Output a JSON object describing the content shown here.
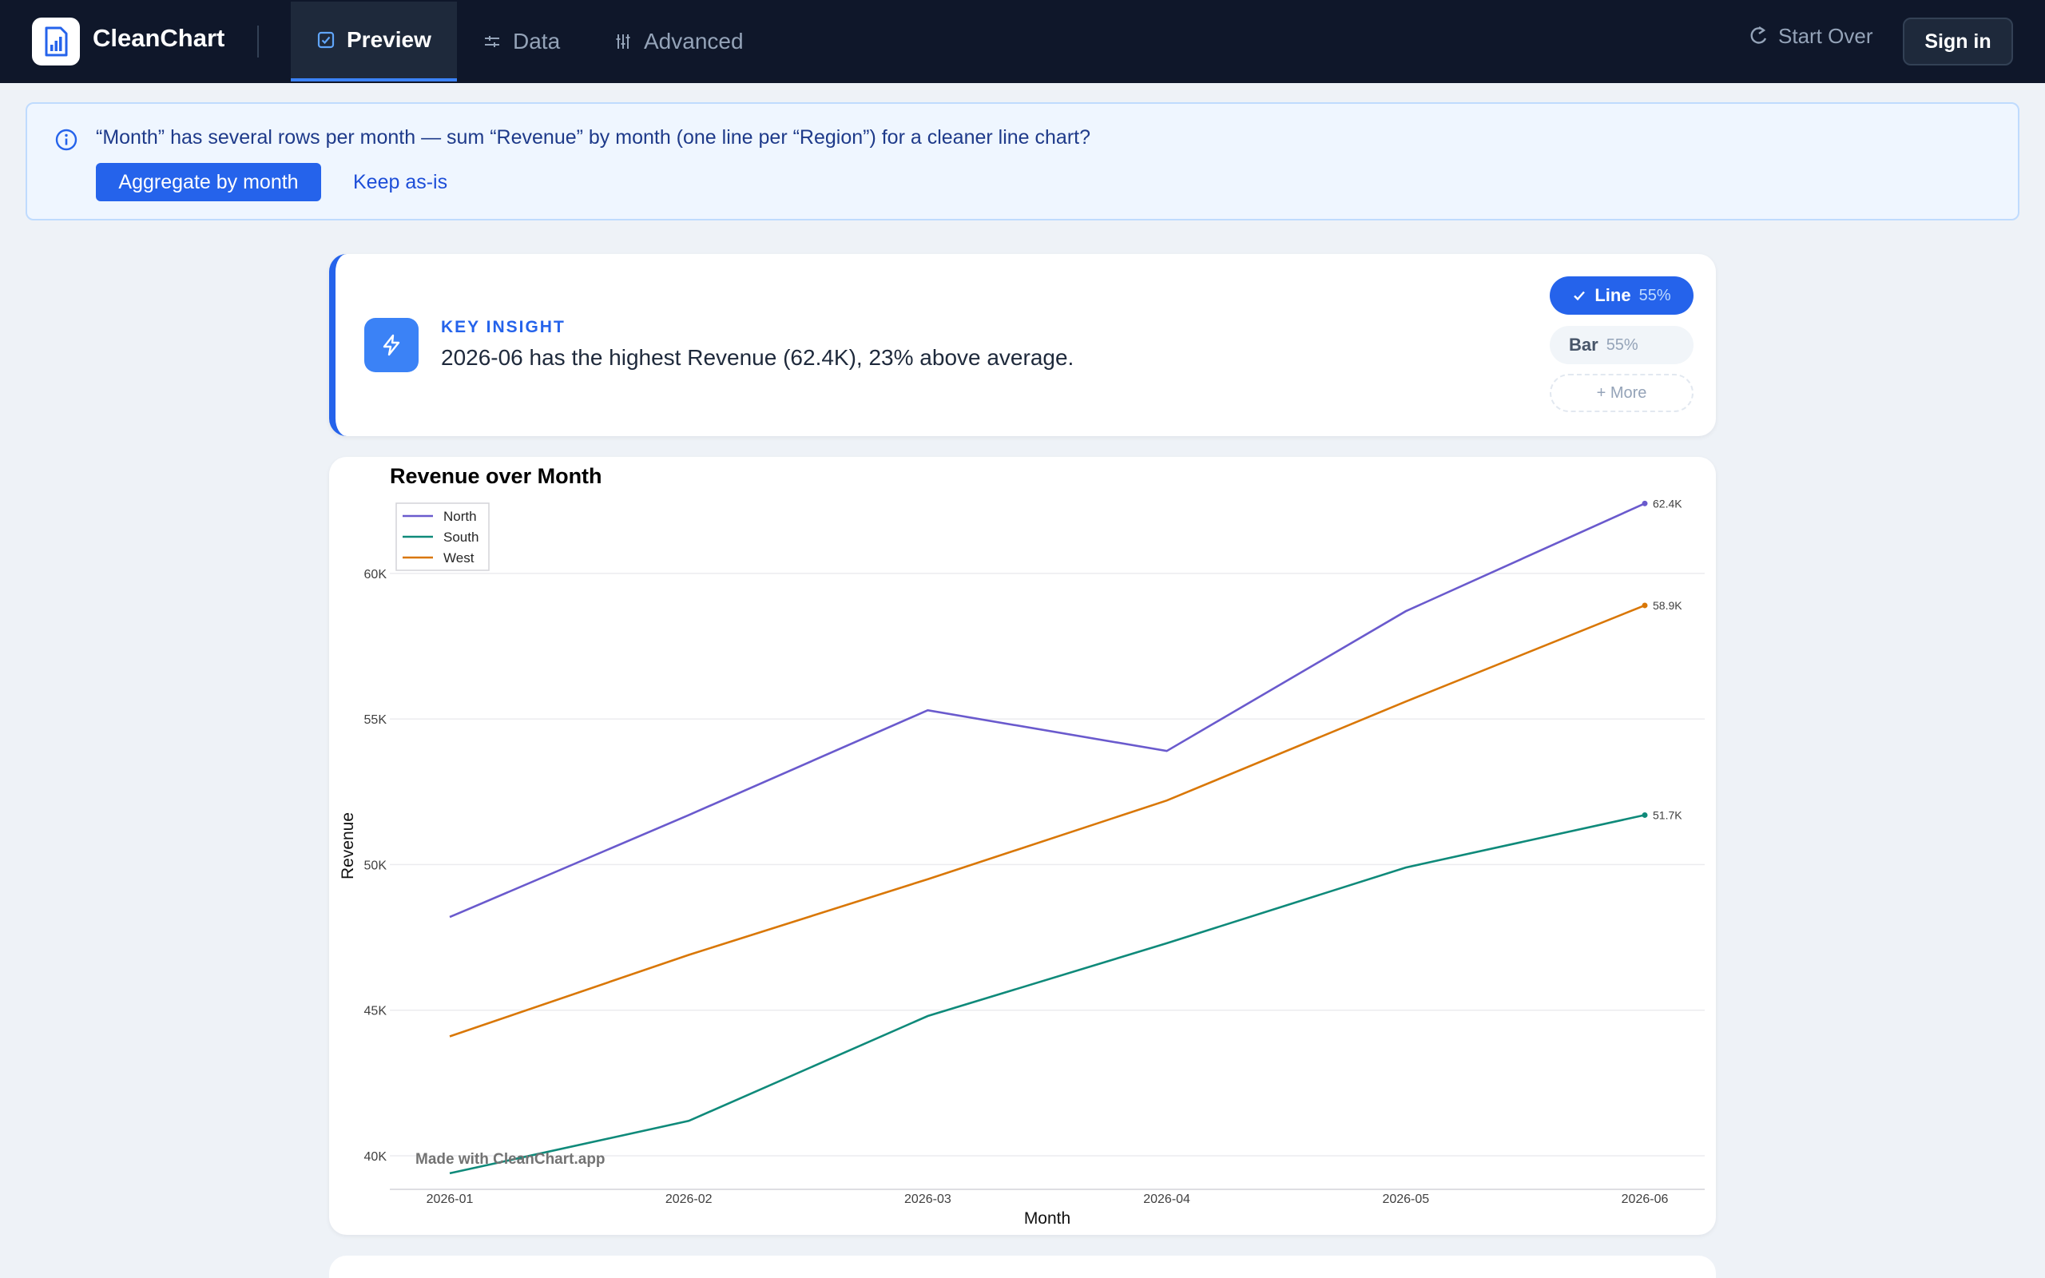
{
  "app": {
    "name": "CleanChart"
  },
  "nav": {
    "tabs": [
      {
        "label": "Preview",
        "icon": "check-square-icon",
        "active": true
      },
      {
        "label": "Data",
        "icon": "sliders-horizontal-icon",
        "active": false
      },
      {
        "label": "Advanced",
        "icon": "sliders-vertical-icon",
        "active": false
      }
    ],
    "start_over": "Start Over",
    "sign_in": "Sign in"
  },
  "banner": {
    "message": "“Month” has several rows per month — sum “Revenue” by month (one line per “Region”) for a cleaner line chart?",
    "primary_action": "Aggregate by month",
    "secondary_action": "Keep as-is"
  },
  "insight": {
    "label": "KEY INSIGHT",
    "text": "2026-06 has the highest Revenue (62.4K), 23% above average.",
    "chart_types": [
      {
        "label": "Line",
        "score": "55%",
        "selected": true
      },
      {
        "label": "Bar",
        "score": "55%",
        "selected": false
      }
    ],
    "more_label": "+ More"
  },
  "colors": {
    "accent": "#2563eb",
    "north": "#6a5acd",
    "south": "#0f8a7a",
    "west": "#d97706"
  },
  "chart_data": {
    "type": "line",
    "title": "Revenue over Month",
    "xlabel": "Month",
    "ylabel": "Revenue",
    "x": [
      "2026-01",
      "2026-02",
      "2026-03",
      "2026-04",
      "2026-05",
      "2026-06"
    ],
    "ylim": [
      38300,
      64000
    ],
    "yticks": [
      40000,
      45000,
      50000,
      55000,
      60000
    ],
    "ytick_labels": [
      "40K",
      "45K",
      "50K",
      "55K",
      "60K"
    ],
    "grid": true,
    "legend": "top-left",
    "series": [
      {
        "name": "North",
        "values": [
          48200,
          51700,
          55300,
          53900,
          58700,
          62400
        ],
        "end_label": "62.4K"
      },
      {
        "name": "South",
        "values": [
          39400,
          41200,
          44800,
          47300,
          49900,
          51700
        ],
        "end_label": "51.7K"
      },
      {
        "name": "West",
        "values": [
          44100,
          46900,
          49500,
          52200,
          55600,
          58900
        ],
        "end_label": "58.9K"
      }
    ],
    "watermark": "Made with CleanChart.app"
  }
}
